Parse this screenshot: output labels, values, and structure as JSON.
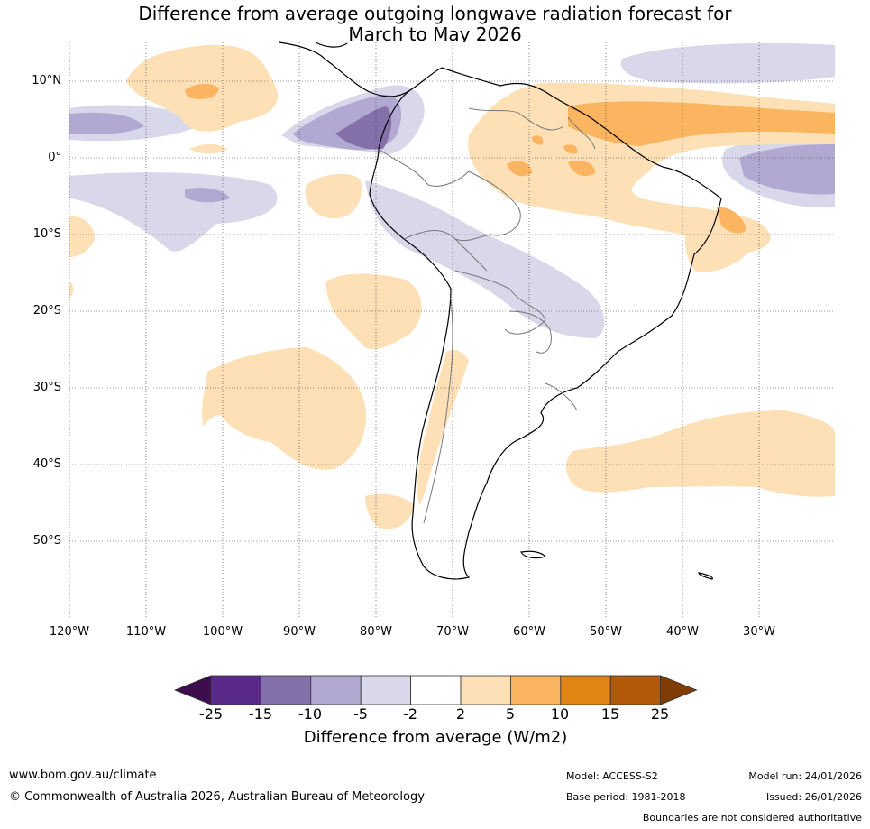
{
  "title_line1": "Difference from average outgoing longwave radiation forecast for",
  "title_line2": "March to May 2026",
  "lat_ticks": [
    "10°N",
    "0°",
    "10°S",
    "20°S",
    "30°S",
    "40°S",
    "50°S"
  ],
  "lon_ticks": [
    "120°W",
    "110°W",
    "100°W",
    "90°W",
    "80°W",
    "70°W",
    "60°W",
    "50°W",
    "40°W",
    "30°W"
  ],
  "colorbar": {
    "labels": [
      "-25",
      "-15",
      "-10",
      "-5",
      "-2",
      "2",
      "5",
      "10",
      "15",
      "25"
    ],
    "colors": [
      "#3c0e4e",
      "#5a2a8a",
      "#8471aa",
      "#b1a9d2",
      "#d9d8ea",
      "#ffffff",
      "#fde0b5",
      "#fbb45f",
      "#e08514",
      "#b35a0a",
      "#7f3c04"
    ],
    "title": "Difference from average (W/m2)"
  },
  "footer": {
    "website": "www.bom.gov.au/climate",
    "copyright": "© Commonwealth of Australia 2026, Australian Bureau of Meteorology",
    "model": "Model: ACCESS-S2",
    "base_period": "Base period: 1981-2018",
    "model_run": "Model run: 24/01/2026",
    "issued": "Issued: 26/01/2026",
    "disclaimer": "Boundaries are not considered authoritative"
  }
}
